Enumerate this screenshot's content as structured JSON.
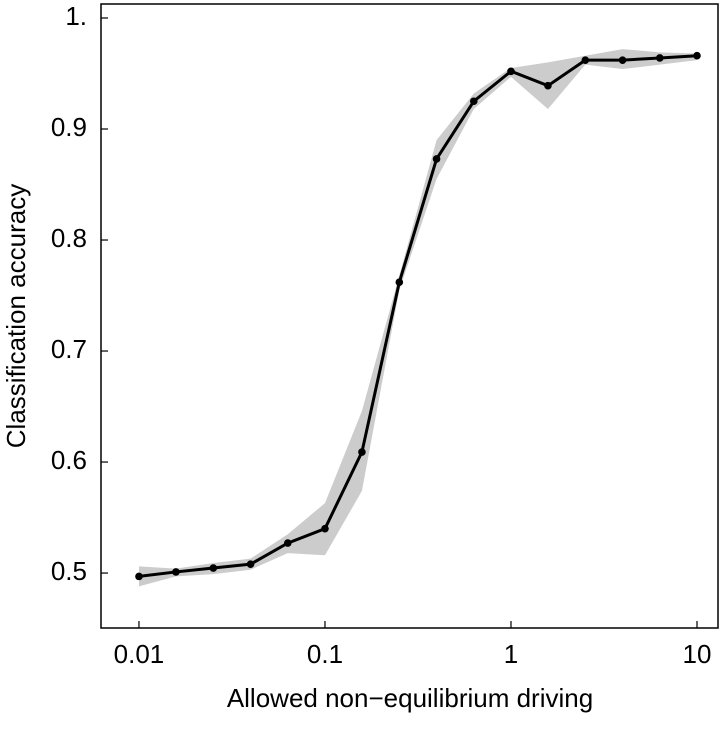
{
  "chart_data": {
    "type": "line",
    "x_label": "Allowed non−equilibrium driving",
    "y_label": "Classification accuracy",
    "x": [
      0.01,
      0.0158,
      0.0251,
      0.0398,
      0.0631,
      0.1,
      0.158,
      0.251,
      0.398,
      0.631,
      1,
      1.58,
      2.51,
      3.98,
      6.31,
      10
    ],
    "values": [
      0.497,
      0.501,
      0.5045,
      0.508,
      0.527,
      0.54,
      0.609,
      0.762,
      0.873,
      0.925,
      0.952,
      0.939,
      0.962,
      0.962,
      0.964,
      0.966
    ],
    "band": {
      "upper": [
        0.506,
        0.504,
        0.509,
        0.513,
        0.535,
        0.563,
        0.646,
        0.768,
        0.89,
        0.932,
        0.955,
        0.96,
        0.966,
        0.972,
        0.969,
        0.968
      ],
      "lower": [
        0.488,
        0.497,
        0.499,
        0.503,
        0.518,
        0.516,
        0.574,
        0.755,
        0.855,
        0.918,
        0.947,
        0.918,
        0.958,
        0.954,
        0.958,
        0.962
      ],
      "color": "#cccccc"
    },
    "color": "#000000",
    "xscale": "log",
    "xlim": [
      0.00625,
      12.97
    ],
    "ylim": [
      0.4505,
      1.0126
    ],
    "xticks": [
      0.01,
      0.1,
      1,
      10
    ],
    "yticks": [
      0.5,
      0.6,
      0.7,
      0.8,
      0.9,
      {
        "value": 1,
        "label": "1."
      }
    ]
  }
}
